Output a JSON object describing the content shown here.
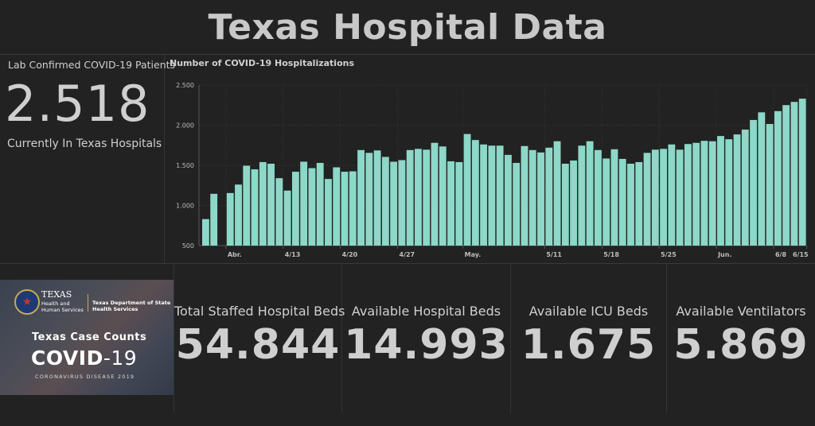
{
  "header": {
    "title": "Texas Hospital Data"
  },
  "patients": {
    "label_top": "Lab Confirmed COVID-19 Patients",
    "value": "2.518",
    "label_bottom": "Currently In Texas Hospitals"
  },
  "logo": {
    "agency": "TEXAS",
    "agency_sub": "Health and Human Services",
    "dept": "Texas Department of State Health Services",
    "case_counts": "Texas Case Counts",
    "covid_main": "COVID",
    "covid_suffix": "-19",
    "disease": "CORONAVIRUS DISEASE 2019"
  },
  "stats": [
    {
      "label": "Total Staffed Hospital Beds",
      "value": "54.844"
    },
    {
      "label": "Available Hospital Beds",
      "value": "14.993"
    },
    {
      "label": "Available ICU Beds",
      "value": "1.675"
    },
    {
      "label": "Available Ventilators",
      "value": "5.869"
    }
  ],
  "colors": {
    "bar": "#8dd8c8",
    "background": "#222222",
    "text": "#cfcfcf"
  },
  "chart_data": {
    "type": "bar",
    "title": "Number of COVID-19 Hospitalizations",
    "xlabel": "",
    "ylabel": "",
    "ylim": [
      500,
      2500
    ],
    "yticks": [
      500,
      1000,
      1500,
      2000,
      2500
    ],
    "ytick_labels": [
      "500",
      "1.000",
      "1.500",
      "2.000",
      "2.500"
    ],
    "grid": true,
    "x_tick_labels": [
      {
        "index": 3,
        "label": "Abr."
      },
      {
        "index": 10,
        "label": "4/13"
      },
      {
        "index": 17,
        "label": "4/20"
      },
      {
        "index": 24,
        "label": "4/27"
      },
      {
        "index": 32,
        "label": "May."
      },
      {
        "index": 42,
        "label": "5/11"
      },
      {
        "index": 49,
        "label": "5/18"
      },
      {
        "index": 56,
        "label": "5/25"
      },
      {
        "index": 63,
        "label": "Jun."
      },
      {
        "index": 70,
        "label": "6/8"
      },
      {
        "index": 77,
        "label": "6/15"
      }
    ],
    "values": [
      830,
      1145,
      null,
      1155,
      1260,
      1495,
      1450,
      1540,
      1520,
      1340,
      1185,
      1420,
      1545,
      1465,
      1530,
      1330,
      1475,
      1420,
      1425,
      1690,
      1655,
      1685,
      1605,
      1545,
      1565,
      1690,
      1705,
      1695,
      1780,
      1735,
      1550,
      1540,
      1890,
      1815,
      1760,
      1745,
      1745,
      1630,
      1530,
      1740,
      1690,
      1660,
      1720,
      1800,
      1520,
      1560,
      1745,
      1800,
      1690,
      1585,
      1700,
      1580,
      1520,
      1540,
      1655,
      1695,
      1705,
      1760,
      1695,
      1765,
      1780,
      1805,
      1800,
      1865,
      1825,
      1885,
      1945,
      2065,
      2160,
      2015,
      2175,
      2250,
      2290,
      2330
    ]
  }
}
